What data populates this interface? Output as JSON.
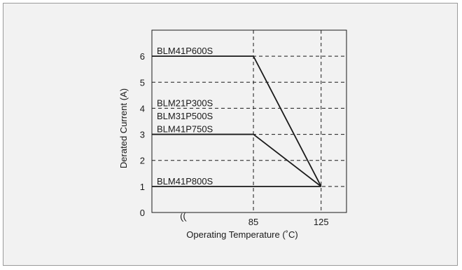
{
  "chart_data": {
    "type": "line",
    "xlabel": "Operating Temperature  (˚C)",
    "ylabel": "Derated Current  (A)",
    "xlim": [
      25,
      140
    ],
    "ylim": [
      0,
      7
    ],
    "x_break_symbol": "((",
    "x_ticks": [
      {
        "value": 85,
        "label": "85"
      },
      {
        "value": 125,
        "label": "125"
      }
    ],
    "y_ticks": [
      {
        "value": 0,
        "label": "0"
      },
      {
        "value": 1,
        "label": "1"
      },
      {
        "value": 2,
        "label": "2"
      },
      {
        "value": 3,
        "label": "3"
      },
      {
        "value": 4,
        "label": "4"
      },
      {
        "value": 5,
        "label": "5"
      },
      {
        "value": 6,
        "label": "6"
      }
    ],
    "grid": true,
    "series": [
      {
        "name": "BLM41P600S",
        "x": [
          25,
          85,
          125
        ],
        "y": [
          6,
          6,
          1
        ]
      },
      {
        "name": "BLM41P750S",
        "x": [
          25,
          85,
          125
        ],
        "y": [
          3,
          3,
          1
        ]
      },
      {
        "name": "BLM41P800S",
        "x": [
          25,
          125
        ],
        "y": [
          1,
          1
        ]
      }
    ],
    "labels": [
      {
        "text": "BLM41P600S",
        "y": 6
      },
      {
        "text": "BLM21P300S",
        "y": 4
      },
      {
        "text": "BLM31P500S",
        "y": 3.5
      },
      {
        "text": "BLM41P750S",
        "y": 3
      },
      {
        "text": "BLM41P800S",
        "y": 1
      }
    ]
  }
}
